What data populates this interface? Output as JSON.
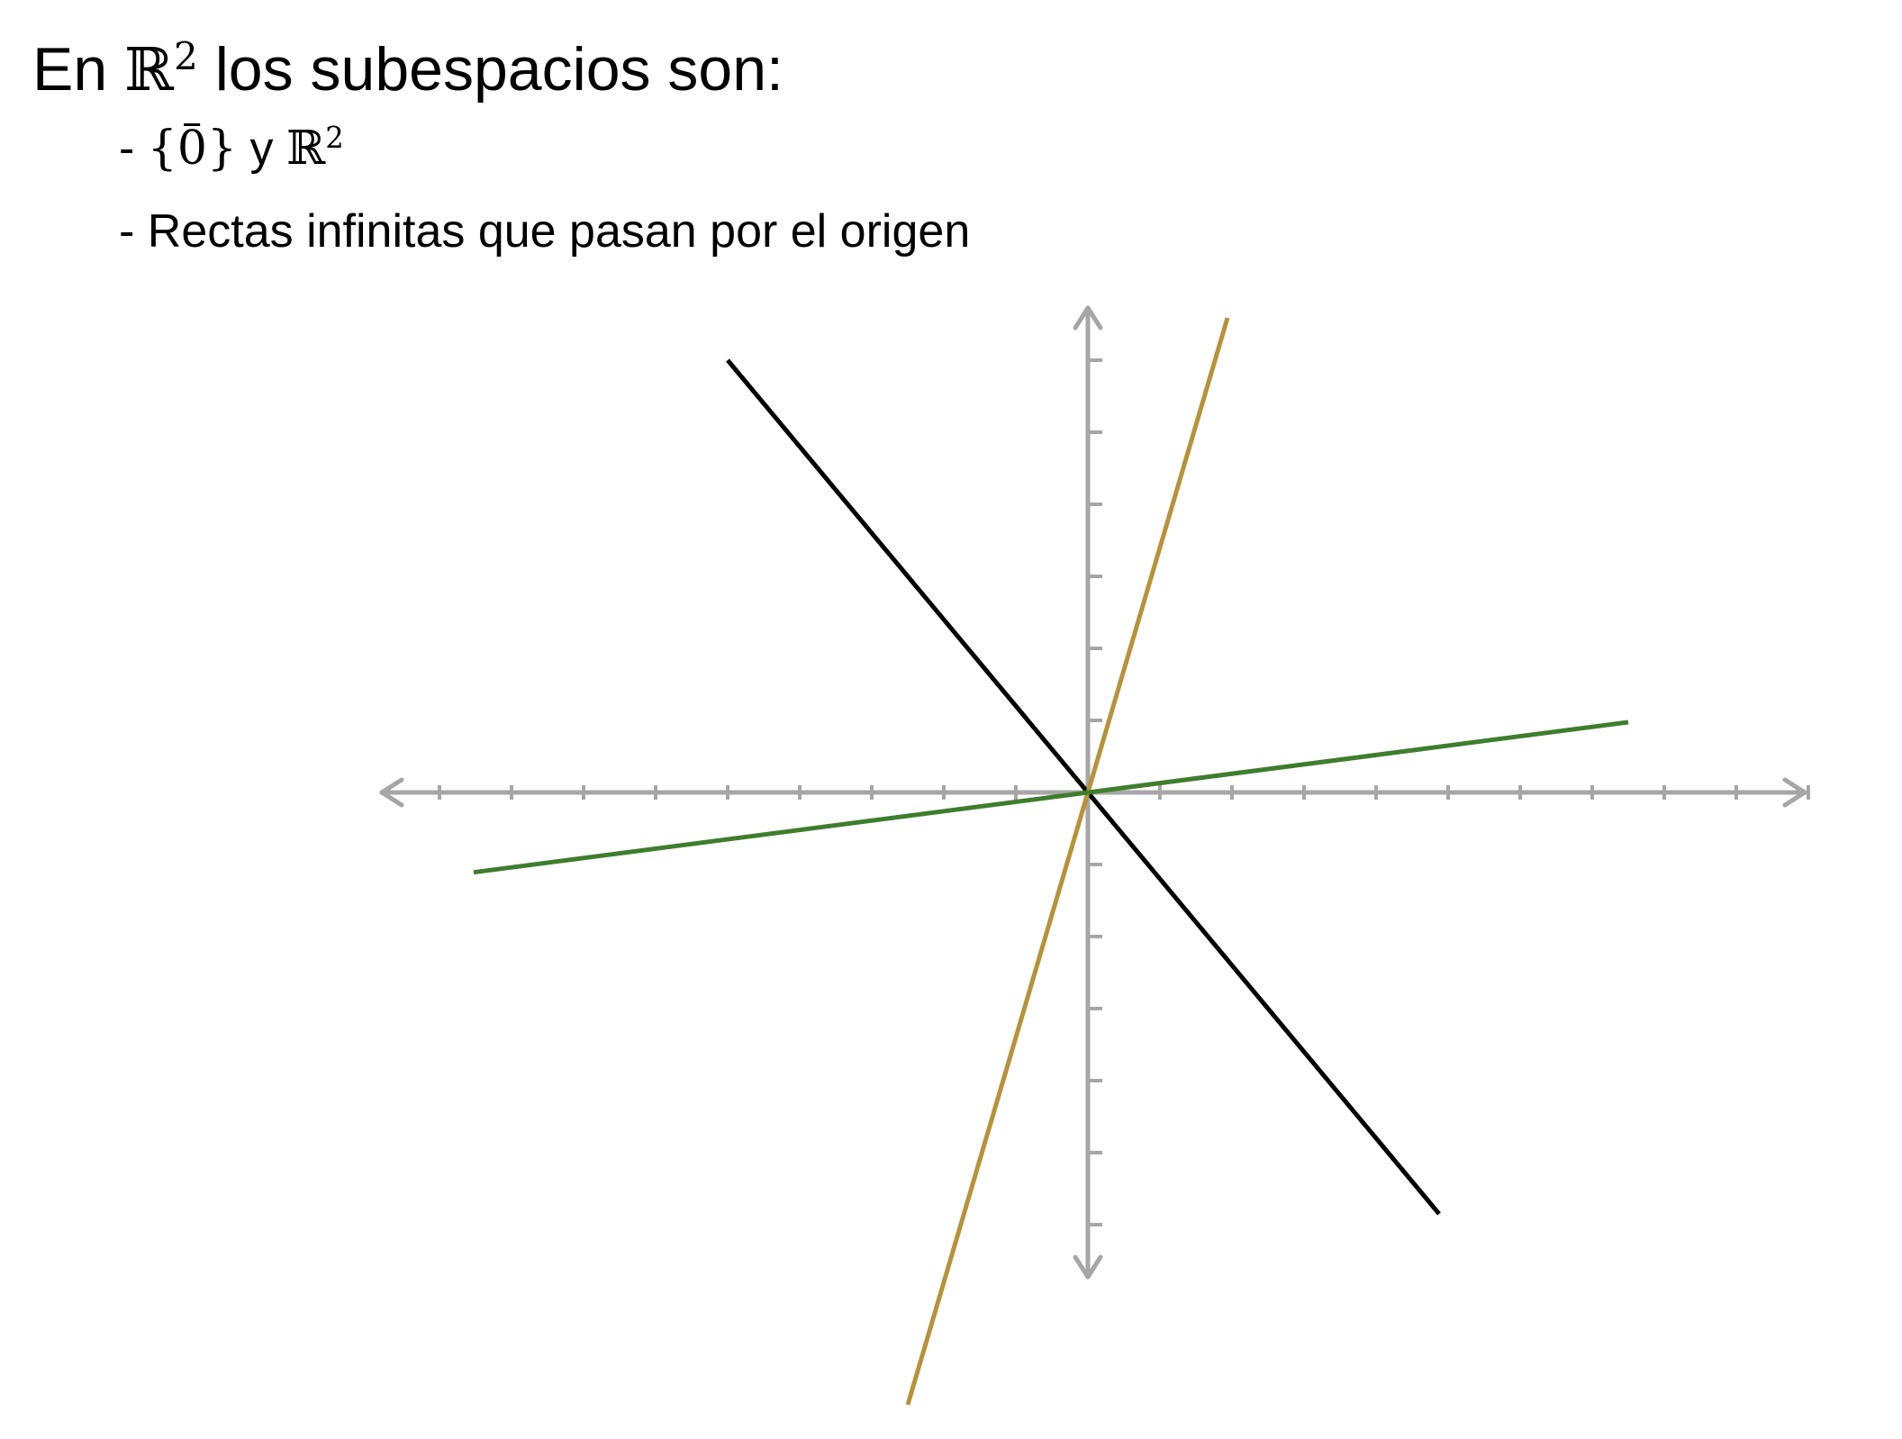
{
  "title": {
    "prefix": "En",
    "space_symbol": "ℝ",
    "exponent": "2",
    "suffix": "los subespacios son:"
  },
  "bullets": [
    {
      "dash": "-",
      "set_open": "{",
      "zero": "0",
      "set_close": "}",
      "connector": "y",
      "space_symbol": "ℝ",
      "exponent": "2"
    },
    {
      "dash": "-",
      "text": "Rectas infinitas que pasan por el origen"
    }
  ],
  "colors": {
    "axis": "#a6a6a6",
    "line_black": "#000000",
    "line_gold": "#b8923a",
    "line_green": "#3f7d2e"
  },
  "diagram": {
    "type": "coordinate-axes-with-lines",
    "x_ticks_negative": 9,
    "x_ticks_positive": 10,
    "y_ticks_positive": 6,
    "y_ticks_negative": 6,
    "lines": [
      {
        "name": "black-line",
        "slope": -1.2,
        "color": "line_black"
      },
      {
        "name": "gold-line",
        "slope": 3.4,
        "color": "line_gold"
      },
      {
        "name": "green-line",
        "slope": 0.13,
        "color": "line_green"
      }
    ]
  }
}
